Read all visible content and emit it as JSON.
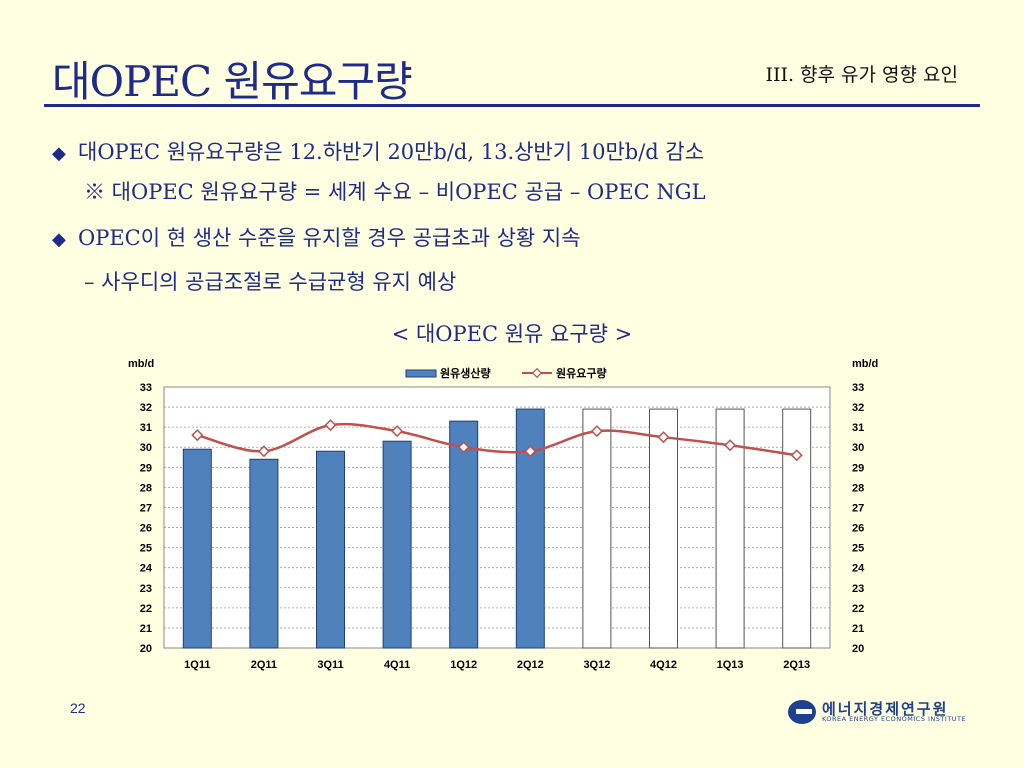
{
  "slide": {
    "title": "대OPEC 원유요구량",
    "section": "III. 향후 유가 영향 요인",
    "bullets": [
      "대OPEC 원유요구량은 12.하반기 20만b/d, 13.상반기 10만b/d 감소",
      "※ 대OPEC 원유요구량 = 세계 수요 – 비OPEC 공급 – OPEC NGL",
      "OPEC이 현 생산 수준을 유지할 경우 공급초과 상황 지속",
      "– 사우디의 공급조절로 수급균형 유지 예상"
    ],
    "bullet_marker": "◆",
    "chart_caption": "< 대OPEC 원유 요구량 >",
    "page_number": "22",
    "logo_ko": "에너지경제연구원",
    "logo_en": "KOREA ENERGY ECONOMICS INSTITUTE"
  },
  "colors": {
    "title": "#1F2A8C",
    "background": "#FFFFE1",
    "bar_fill": "#4F81BD",
    "bar_stroke": "#1F3F7A",
    "line": "#C0504D"
  },
  "chart_data": {
    "type": "bar",
    "categories": [
      "1Q11",
      "2Q11",
      "3Q11",
      "4Q11",
      "1Q12",
      "2Q12",
      "3Q12",
      "4Q12",
      "1Q13",
      "2Q13"
    ],
    "series": [
      {
        "name": "원유생산량",
        "type": "bar",
        "values": [
          29.9,
          29.4,
          29.8,
          30.3,
          31.3,
          31.9,
          31.9,
          31.9,
          31.9,
          31.9
        ],
        "filled": [
          true,
          true,
          true,
          true,
          true,
          true,
          false,
          false,
          false,
          false
        ]
      },
      {
        "name": "원유요구량",
        "type": "line",
        "values": [
          30.6,
          29.8,
          31.1,
          30.8,
          30.0,
          29.8,
          30.8,
          30.5,
          30.1,
          29.6
        ]
      }
    ],
    "ylabel_left": "mb/d",
    "ylabel_right": "mb/d",
    "ylim": [
      20,
      33
    ],
    "yticks": [
      20,
      21,
      22,
      23,
      24,
      25,
      26,
      27,
      28,
      29,
      30,
      31,
      32,
      33
    ],
    "grid": true,
    "legend": "top-center"
  }
}
